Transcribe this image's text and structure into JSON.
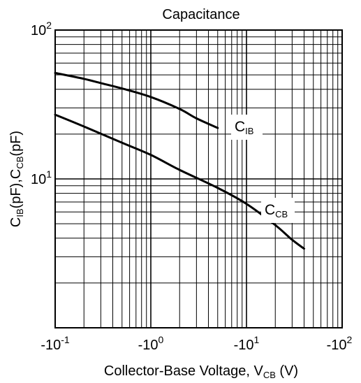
{
  "chart_data": {
    "type": "line",
    "title": "Capacitance",
    "xlabel": {
      "main": "Collector-Base Voltage, V",
      "sub": "CB",
      "suffix": " (V)"
    },
    "ylabel": {
      "p1": "C",
      "s1": "IB",
      "p2": "(pF),C",
      "s2": "CB",
      "p3": "(pF)"
    },
    "x_scale": "log",
    "y_scale": "log",
    "xlim": [
      0.1,
      100
    ],
    "ylim": [
      1,
      100
    ],
    "grid": true,
    "x_ticks": [
      {
        "value": 0.1,
        "base": "-10",
        "exp": "-1"
      },
      {
        "value": 1,
        "base": "-10",
        "exp": "0"
      },
      {
        "value": 10,
        "base": "-10",
        "exp": "1"
      },
      {
        "value": 100,
        "base": "-10",
        "exp": "2"
      }
    ],
    "y_ticks": [
      {
        "value": 10,
        "base": "10",
        "exp": "1"
      },
      {
        "value": 100,
        "base": "10",
        "exp": "2"
      }
    ],
    "series": [
      {
        "name": "IB",
        "label_main": "C",
        "label_sub": "IB",
        "points": [
          [
            0.1,
            51.5
          ],
          [
            0.2,
            47
          ],
          [
            0.3,
            44
          ],
          [
            0.5,
            40.5
          ],
          [
            1,
            35.5
          ],
          [
            2,
            29.5
          ],
          [
            3,
            25.5
          ],
          [
            5,
            22
          ]
        ]
      },
      {
        "name": "CB",
        "label_main": "C",
        "label_sub": "CB",
        "points": [
          [
            0.1,
            27
          ],
          [
            0.2,
            22.5
          ],
          [
            0.5,
            17.5
          ],
          [
            1,
            14.5
          ],
          [
            2,
            11.5
          ],
          [
            5,
            8.7
          ],
          [
            10,
            6.8
          ],
          [
            20,
            4.9
          ],
          [
            30,
            3.9
          ],
          [
            40,
            3.4
          ]
        ]
      }
    ]
  }
}
